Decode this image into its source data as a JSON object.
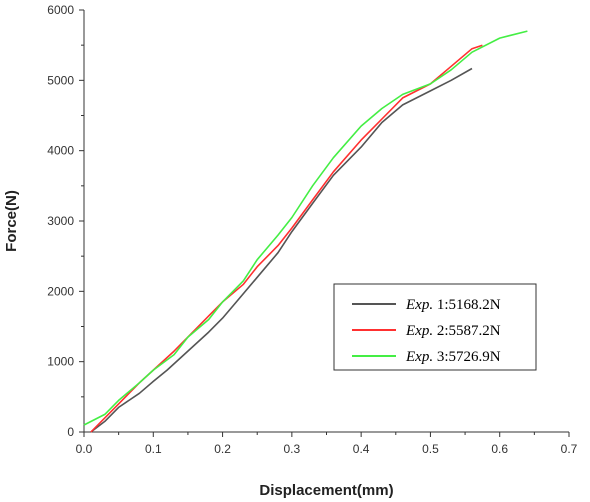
{
  "chart_data": {
    "type": "line",
    "title": "",
    "xlabel": "Displacement(mm)",
    "ylabel": "Force(N)",
    "xlim": [
      0.0,
      0.7
    ],
    "ylim": [
      0,
      6000
    ],
    "x_ticks": [
      "0.0",
      "0.1",
      "0.2",
      "0.3",
      "0.4",
      "0.5",
      "0.6",
      "0.7"
    ],
    "y_ticks": [
      "0",
      "1000",
      "2000",
      "3000",
      "4000",
      "5000",
      "6000"
    ],
    "grid": false,
    "legend_position": "bottom-right",
    "series": [
      {
        "name_prefix": "Exp.",
        "name_suffix": " 1:5168.2N",
        "color": "#555555",
        "x": [
          0.01,
          0.03,
          0.05,
          0.08,
          0.1,
          0.12,
          0.15,
          0.18,
          0.2,
          0.22,
          0.25,
          0.28,
          0.3,
          0.33,
          0.36,
          0.4,
          0.43,
          0.46,
          0.5,
          0.53,
          0.56
        ],
        "y": [
          0,
          150,
          350,
          550,
          720,
          880,
          1150,
          1420,
          1620,
          1850,
          2200,
          2550,
          2850,
          3250,
          3650,
          4050,
          4400,
          4650,
          4850,
          5000,
          5168
        ]
      },
      {
        "name_prefix": "Exp.",
        "name_suffix": " 2:5587.2N",
        "color": "#ff3030",
        "x": [
          0.01,
          0.03,
          0.05,
          0.08,
          0.1,
          0.13,
          0.15,
          0.18,
          0.2,
          0.23,
          0.25,
          0.28,
          0.3,
          0.33,
          0.36,
          0.4,
          0.43,
          0.46,
          0.5,
          0.53,
          0.56,
          0.575
        ],
        "y": [
          0,
          200,
          400,
          700,
          880,
          1150,
          1350,
          1650,
          1850,
          2100,
          2350,
          2650,
          2900,
          3300,
          3700,
          4150,
          4450,
          4750,
          4950,
          5200,
          5450,
          5500
        ]
      },
      {
        "name_prefix": "Exp.",
        "name_suffix": " 3:5726.9N",
        "color": "#44ee44",
        "x": [
          0.0,
          0.03,
          0.05,
          0.08,
          0.1,
          0.13,
          0.15,
          0.18,
          0.2,
          0.23,
          0.25,
          0.28,
          0.3,
          0.33,
          0.36,
          0.4,
          0.43,
          0.46,
          0.5,
          0.53,
          0.56,
          0.6,
          0.64
        ],
        "y": [
          100,
          250,
          450,
          700,
          880,
          1100,
          1350,
          1600,
          1850,
          2150,
          2450,
          2800,
          3050,
          3500,
          3900,
          4350,
          4600,
          4800,
          4950,
          5150,
          5400,
          5600,
          5700
        ]
      }
    ]
  }
}
